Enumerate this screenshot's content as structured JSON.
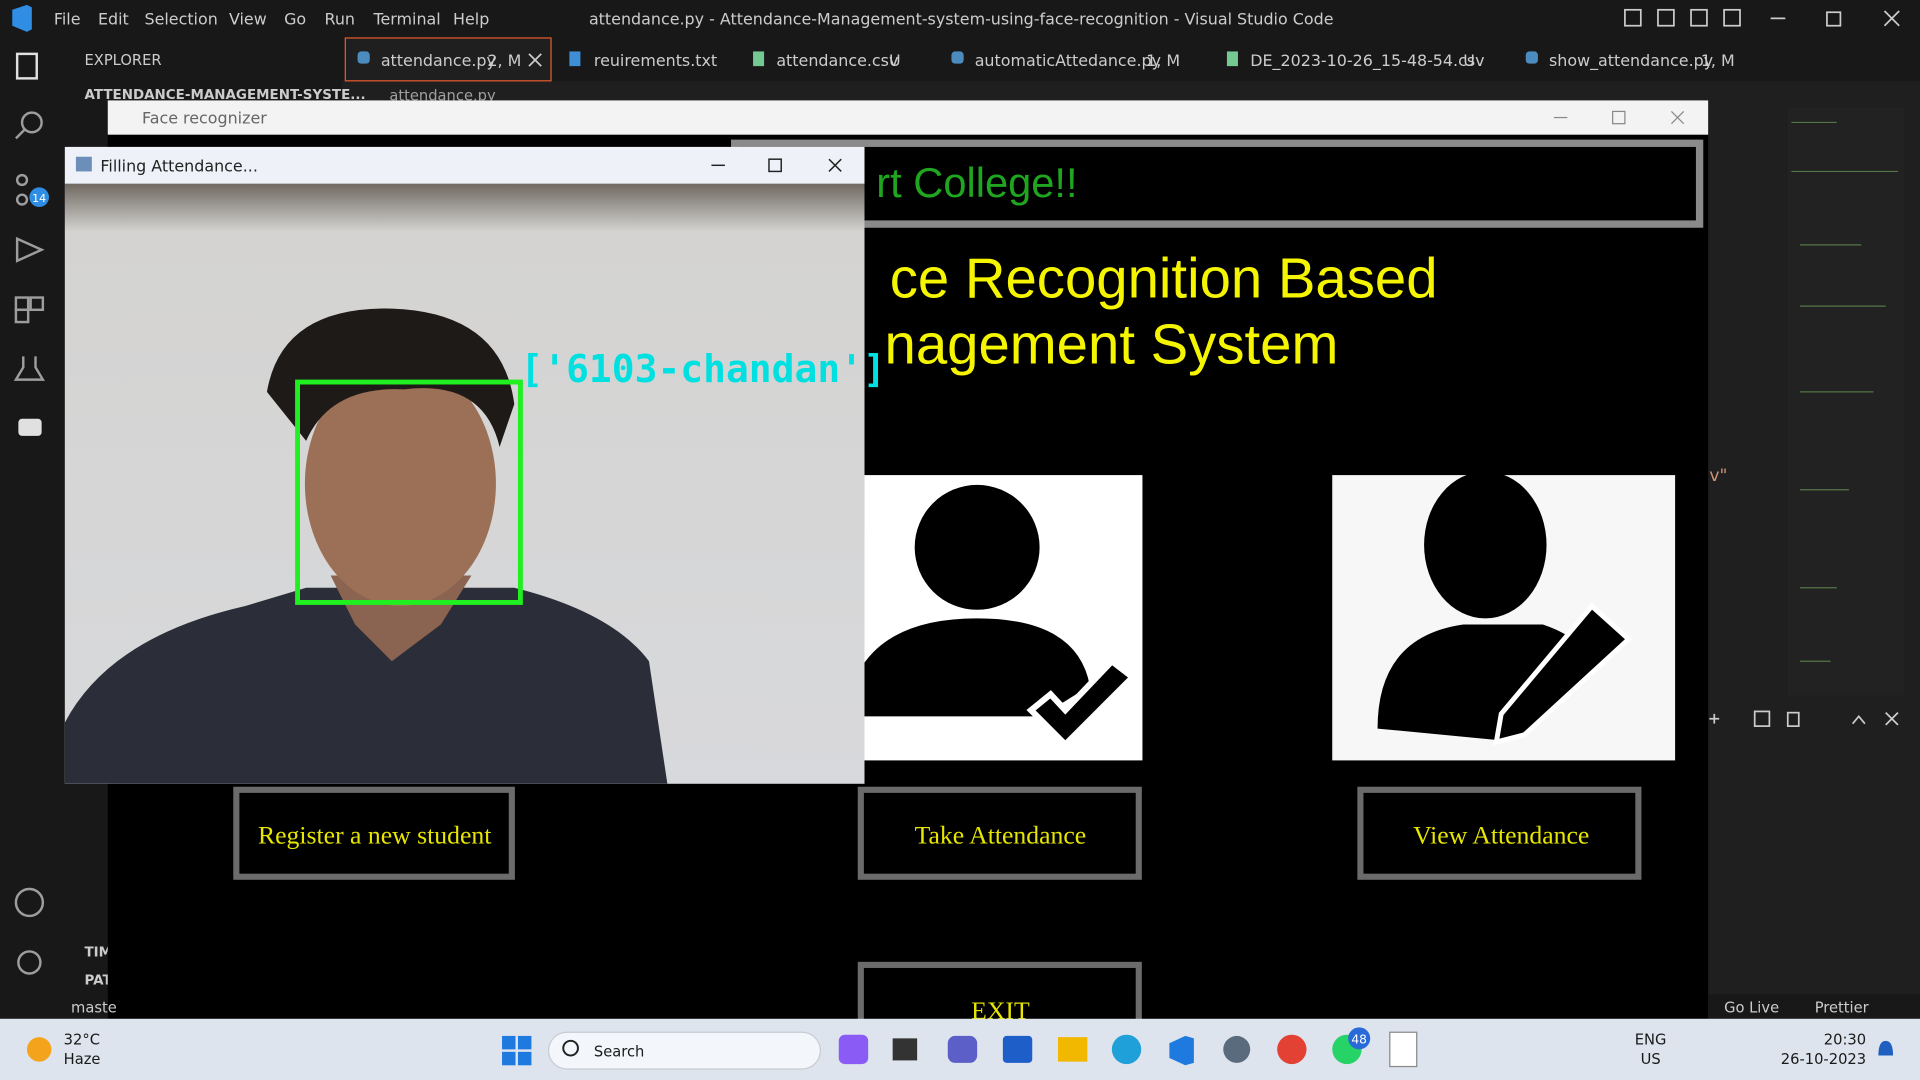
{
  "window_title": "attendance.py - Attendance-Management-system-using-face-recognition - Visual Studio Code",
  "menu": [
    "File",
    "Edit",
    "Selection",
    "View",
    "Go",
    "Run",
    "Terminal",
    "Help"
  ],
  "tabs": [
    {
      "name": "attendance.py",
      "status": "2, M"
    },
    {
      "name": "reuirements.txt"
    },
    {
      "name": "attendance.csv",
      "status": "U"
    },
    {
      "name": "automaticAttedance.py",
      "status": "1, M"
    },
    {
      "name": "DE_2023-10-26_15-48-54.csv",
      "status": "U"
    },
    {
      "name": "show_attendance.py",
      "status": "1, M"
    }
  ],
  "sidebar": {
    "title": "EXPLORER",
    "folder": "ATTENDANCE-MANAGEMENT-SYSTE...",
    "sections": [
      "TIM",
      "PAT"
    ]
  },
  "breadcrumb": "attendance.py",
  "source_control_badge": "14",
  "code_fragment": "v\"",
  "app": {
    "title": "Face recognizer",
    "banner": "rt College!!",
    "heading": [
      "ce Recognition Based",
      "nagement System"
    ],
    "buttons": [
      "Register a new student",
      "Take Attendance",
      "View Attendance",
      "EXIT"
    ]
  },
  "camera": {
    "title": "Filling Attendance...",
    "label": "['6103-chandan']"
  },
  "status_bar": {
    "branch": "maste",
    "items": [
      "Go Live",
      "Prettier"
    ]
  },
  "taskbar": {
    "temperature": "32°C",
    "weather": "Haze",
    "search": "Search",
    "language": "ENG",
    "region": "US",
    "time": "20:30",
    "date": "26-10-2023",
    "badge": "48"
  }
}
